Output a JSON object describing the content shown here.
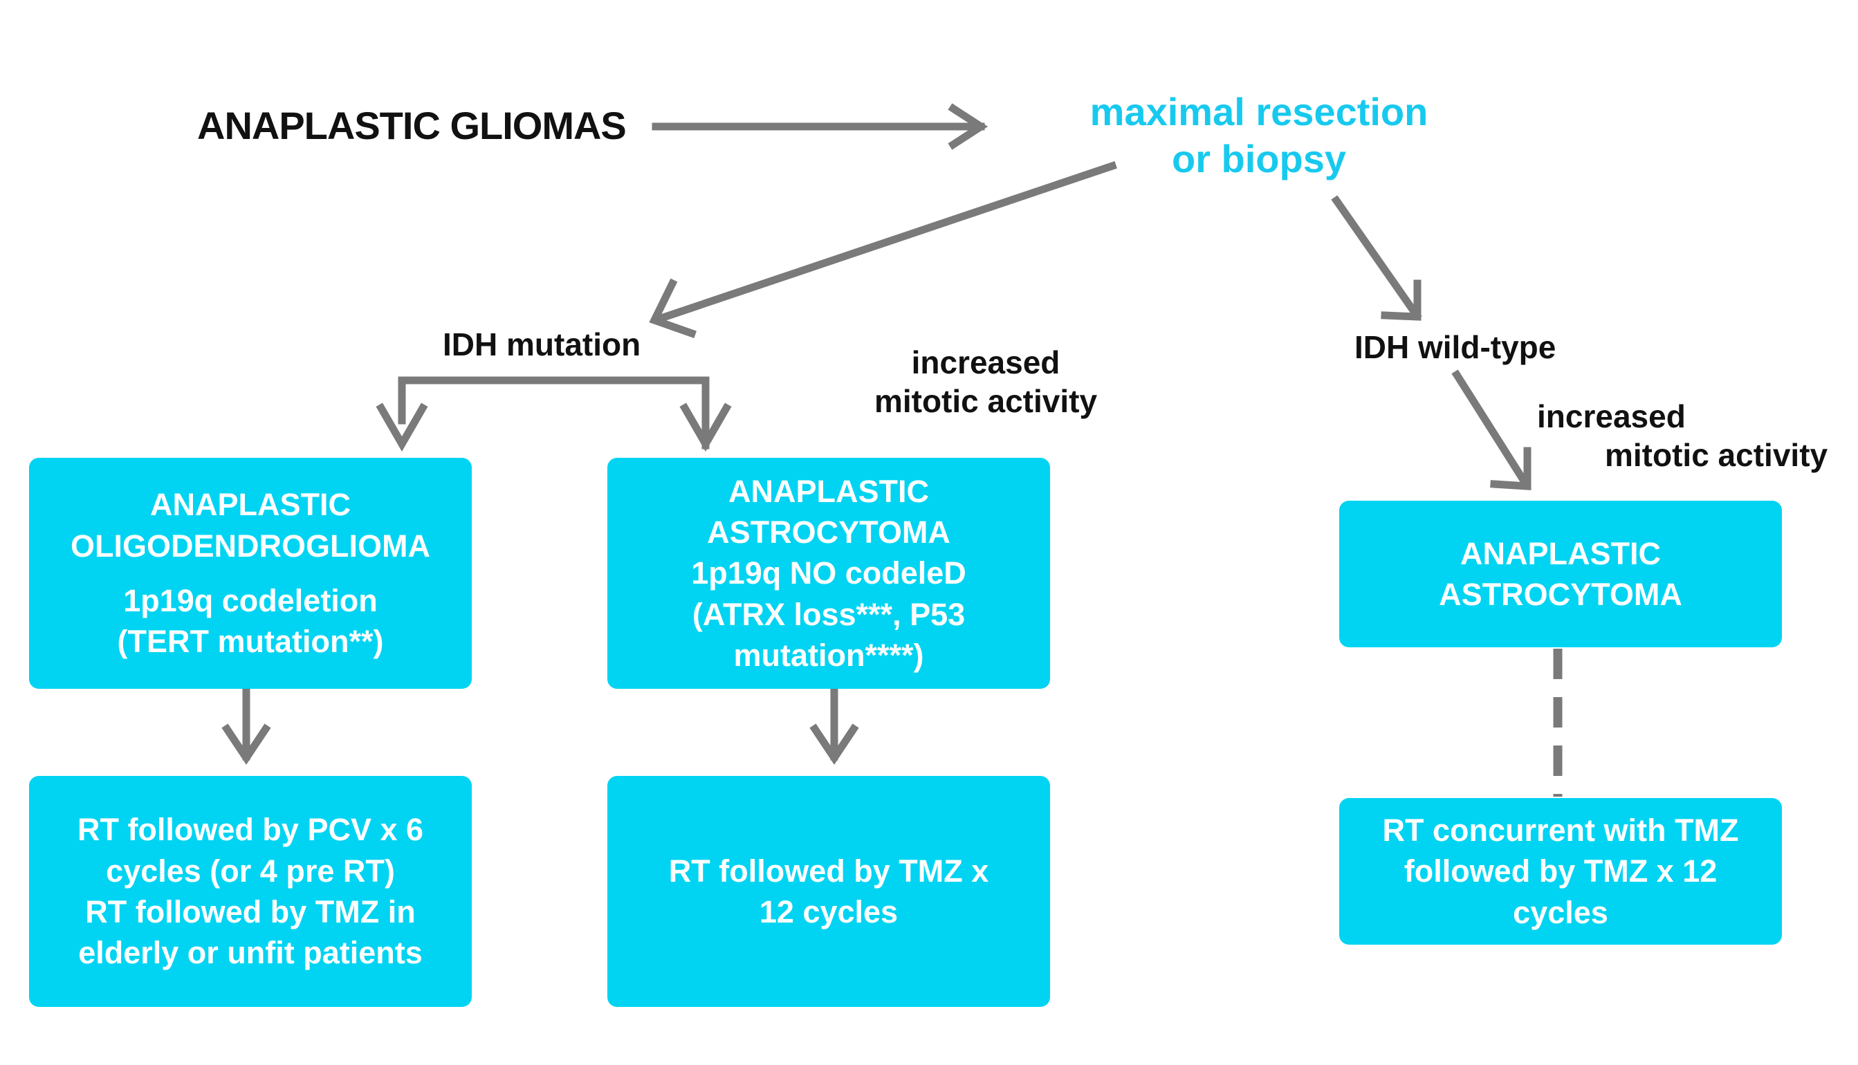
{
  "header": {
    "title": "ANAPLASTIC GLIOMAS",
    "step": [
      "maximal resection",
      "or biopsy"
    ]
  },
  "branches": {
    "idh_mutation": "IDH mutation",
    "idh_wildtype": "IDH wild-type"
  },
  "notes": {
    "mitotic_middle": [
      "increased",
      "mitotic activity"
    ],
    "mitotic_right": [
      "increased",
      "mitotic activity"
    ]
  },
  "boxes": {
    "oligodendroglioma": {
      "lines": [
        "ANAPLASTIC",
        "OLIGODENDROGLIOMA",
        "1p19q codeletion",
        "(TERT mutation**)"
      ]
    },
    "astrocytoma_idh_mutant": {
      "lines": [
        "ANAPLASTIC",
        "ASTROCYTOMA",
        "1p19q NO codeleD",
        "(ATRX loss***, P53",
        "mutation****)"
      ]
    },
    "astrocytoma_idh_wildtype": {
      "lines": [
        "ANAPLASTIC",
        "ASTROCYTOMA"
      ]
    },
    "treatment_oligo": {
      "lines": [
        "RT followed by PCV x 6",
        "cycles (or 4 pre RT)",
        "RT followed by TMZ in",
        "elderly or unfit patients"
      ]
    },
    "treatment_astro_mutant": {
      "lines": [
        "RT followed by TMZ x",
        "12 cycles"
      ]
    },
    "treatment_astro_wildtype": {
      "lines": [
        "RT concurrent with TMZ",
        "followed by TMZ x 12",
        "cycles"
      ]
    }
  },
  "colors": {
    "box_fill": "#00d4f2",
    "box_text": "#ffffff",
    "step_text": "#18c9ee",
    "arrow": "#7a7a7a",
    "label_text": "#111111"
  }
}
